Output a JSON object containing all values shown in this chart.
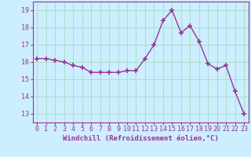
{
  "x": [
    0,
    1,
    2,
    3,
    4,
    5,
    6,
    7,
    8,
    9,
    10,
    11,
    12,
    13,
    14,
    15,
    16,
    17,
    18,
    19,
    20,
    21,
    22,
    23
  ],
  "y": [
    16.2,
    16.2,
    16.1,
    16.0,
    15.8,
    15.7,
    15.4,
    15.4,
    15.4,
    15.4,
    15.5,
    15.5,
    16.2,
    17.0,
    18.4,
    19.0,
    17.7,
    18.1,
    17.2,
    15.9,
    15.6,
    15.8,
    14.3,
    13.0
  ],
  "line_color": "#993399",
  "marker": "+",
  "marker_size": 4,
  "marker_linewidth": 1.2,
  "line_width": 1.0,
  "background_color": "#cceeff",
  "grid_color": "#aaddcc",
  "xlabel": "Windchill (Refroidissement éolien,°C)",
  "xlabel_fontsize": 6.5,
  "xlabel_color": "#993399",
  "ylabel_ticks": [
    13,
    14,
    15,
    16,
    17,
    18,
    19
  ],
  "xlim": [
    -0.5,
    23.5
  ],
  "ylim": [
    12.5,
    19.5
  ],
  "tick_fontsize": 6,
  "tick_color": "#993399",
  "xticks": [
    0,
    1,
    2,
    3,
    4,
    5,
    6,
    7,
    8,
    9,
    10,
    11,
    12,
    13,
    14,
    15,
    16,
    17,
    18,
    19,
    20,
    21,
    22,
    23
  ]
}
